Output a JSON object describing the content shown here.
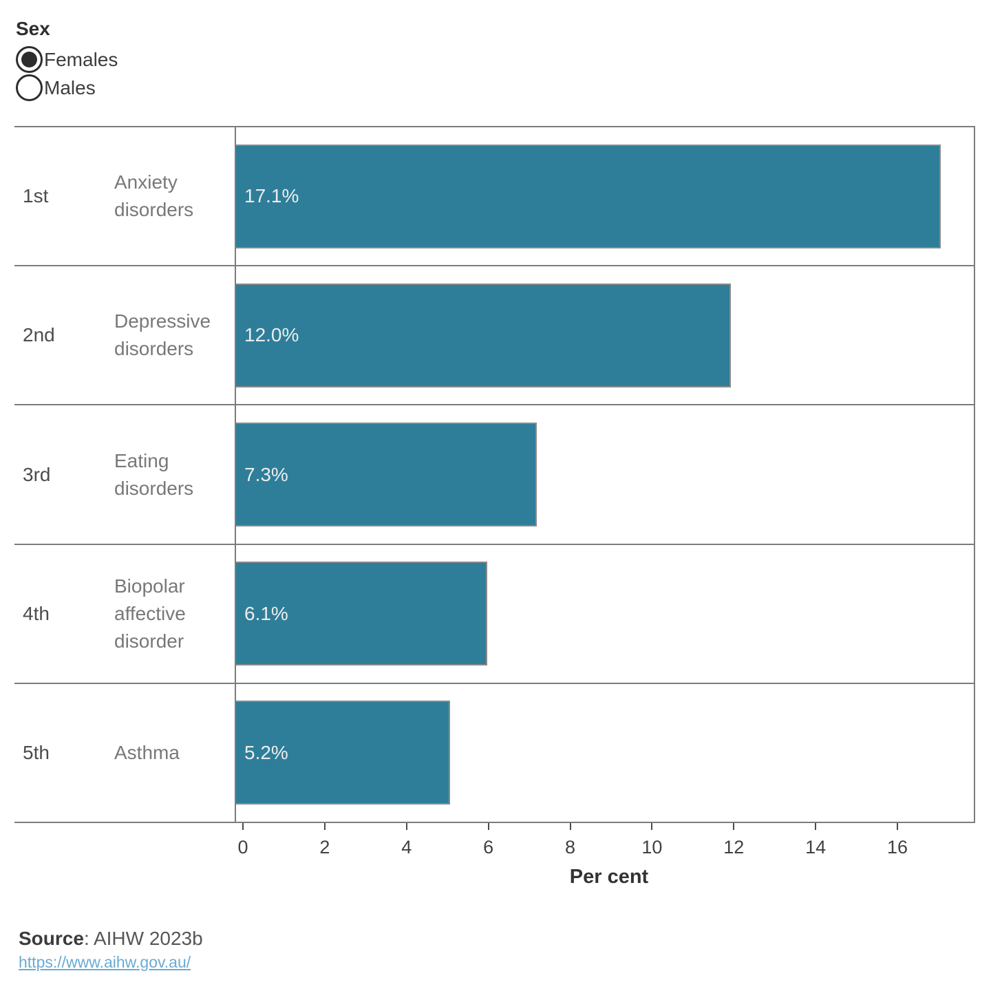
{
  "legend": {
    "title": "Sex",
    "options": [
      {
        "label": "Females",
        "selected": true
      },
      {
        "label": "Males",
        "selected": false
      }
    ]
  },
  "chart_data": {
    "type": "bar",
    "orientation": "horizontal",
    "title": "",
    "xlabel": "Per cent",
    "xlim": [
      0,
      17.9
    ],
    "xticks": [
      0,
      2,
      4,
      6,
      8,
      10,
      12,
      14,
      16
    ],
    "bar_color": "#2e7e99",
    "bar_label_color": "#ededed",
    "rows": [
      {
        "rank": "1st",
        "category": "Anxiety disorders",
        "value": 17.1,
        "label": "17.1%"
      },
      {
        "rank": "2nd",
        "category": "Depressive disorders",
        "value": 12.0,
        "label": "12.0%"
      },
      {
        "rank": "3rd",
        "category": "Eating disorders",
        "value": 7.3,
        "label": "7.3%"
      },
      {
        "rank": "4th",
        "category": "Biopolar affective disorder",
        "value": 6.1,
        "label": "6.1%"
      },
      {
        "rank": "5th",
        "category": "Asthma",
        "value": 5.2,
        "label": "5.2%"
      }
    ]
  },
  "source": {
    "prefix": "Source",
    "text": ": AIHW 2023b",
    "link_text": "https://www.aihw.gov.au/",
    "link_href": "https://www.aihw.gov.au/"
  }
}
